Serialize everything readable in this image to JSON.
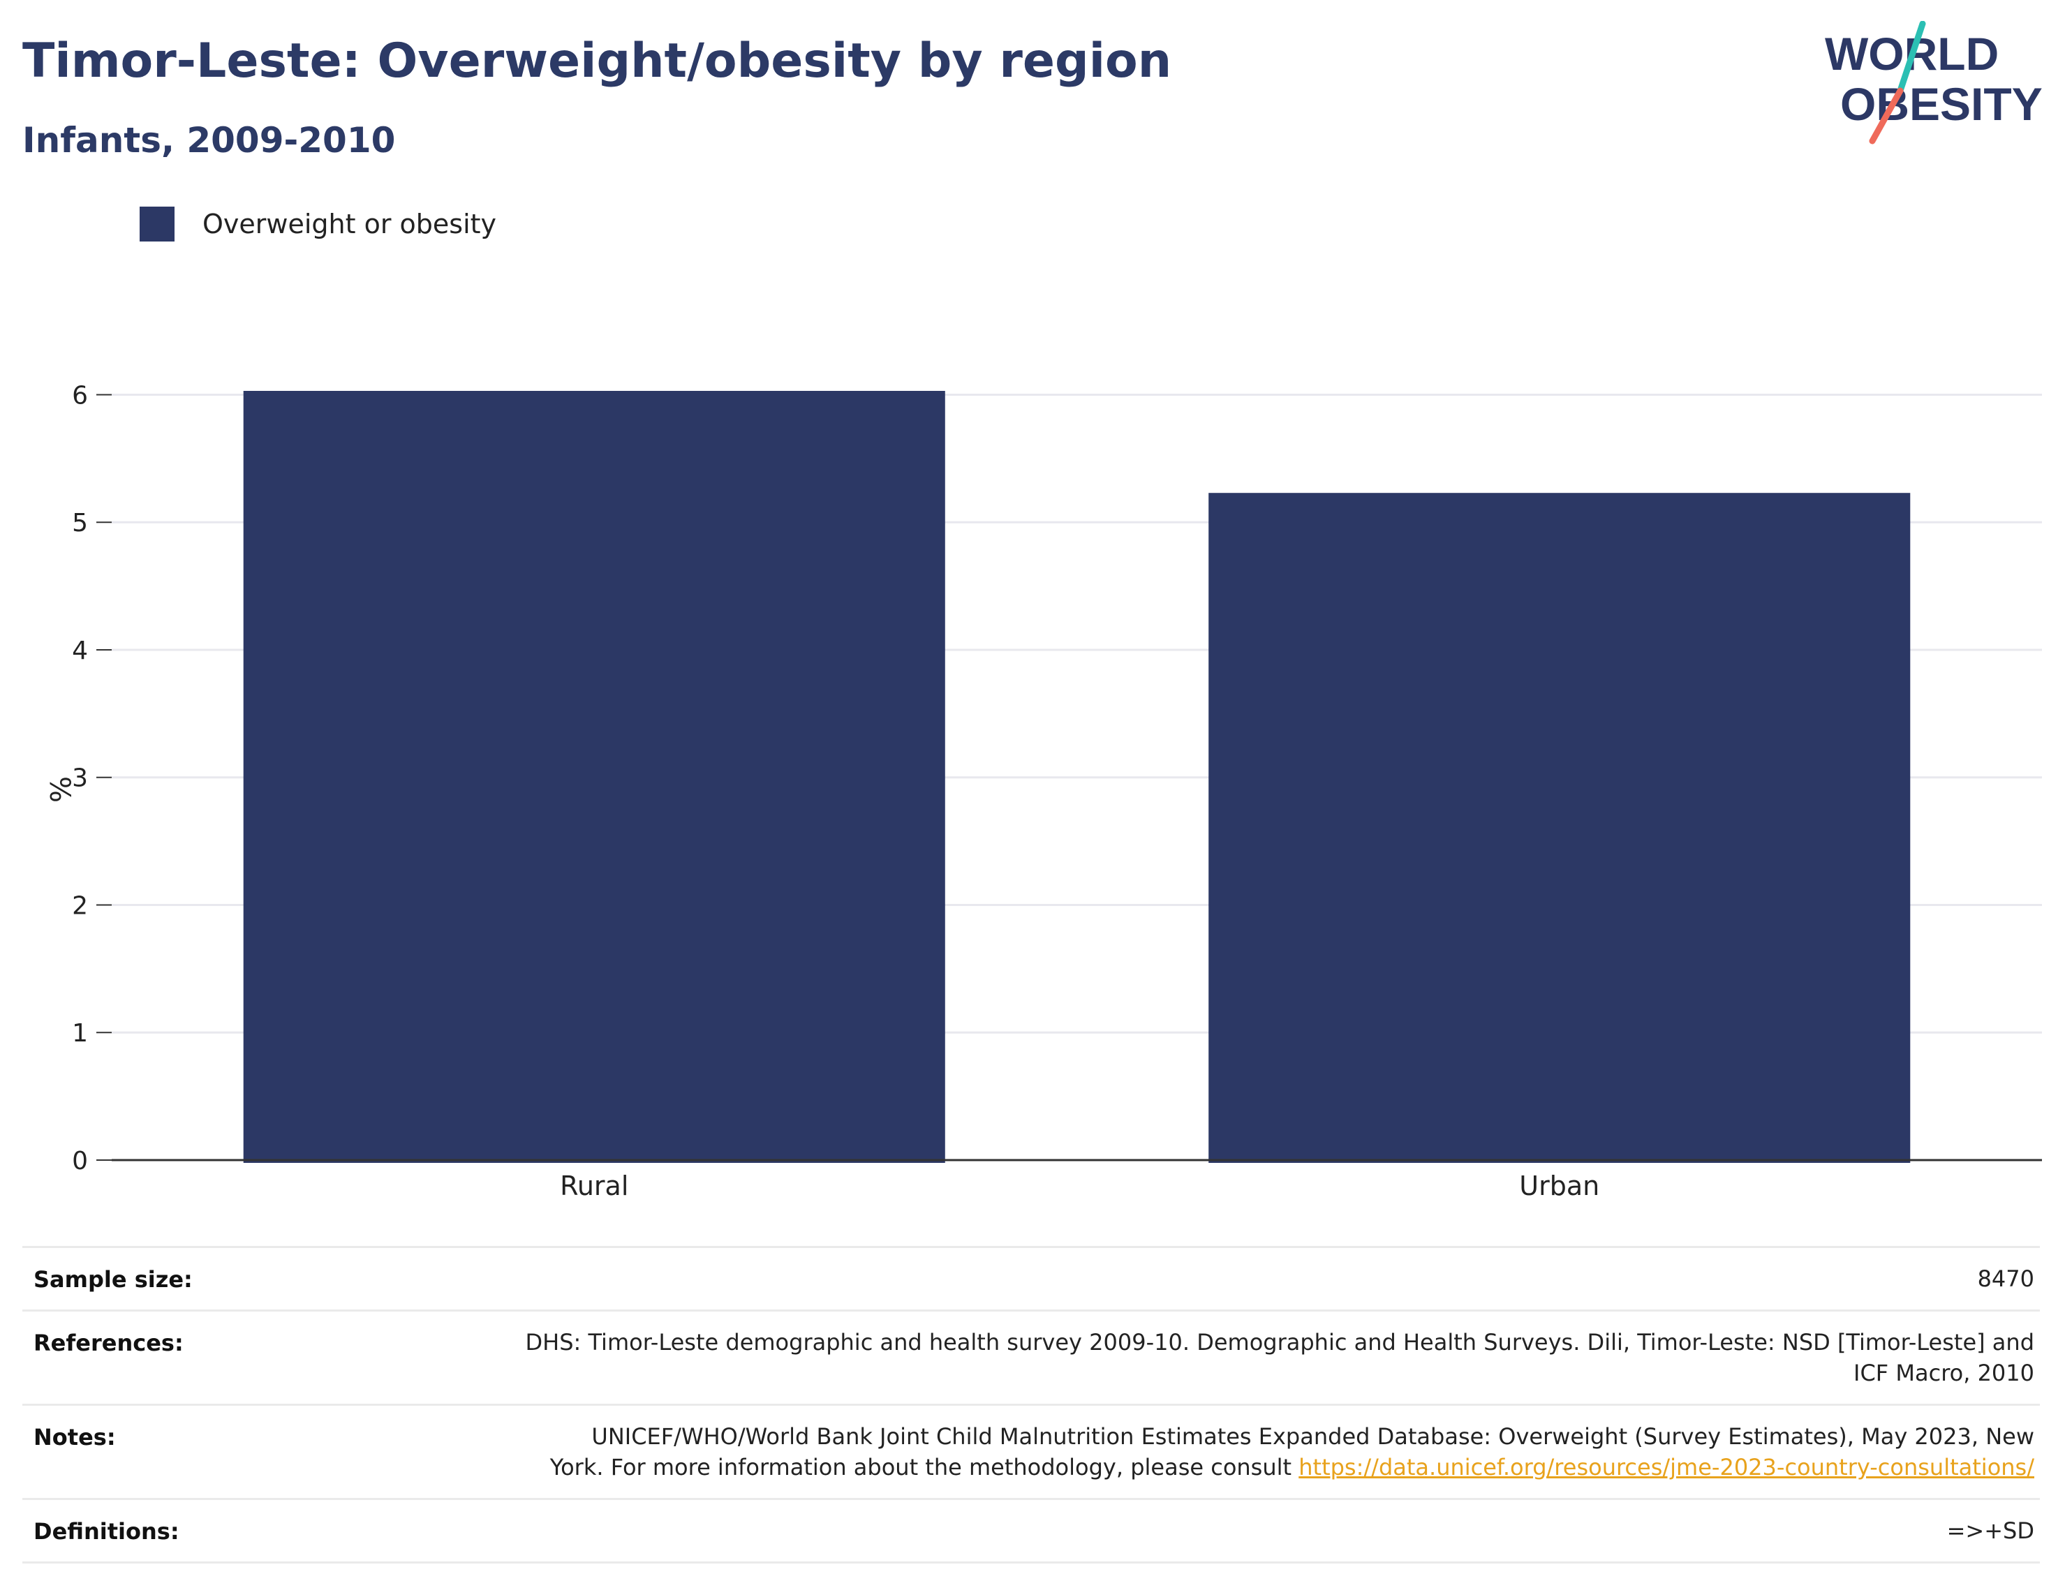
{
  "header": {
    "title": "Timor-Leste: Overweight/obesity by region",
    "subtitle": "Infants, 2009-2010"
  },
  "logo": {
    "line1": "WORLD",
    "line2": "OBESITY",
    "icon": "world-obesity-logo-icon"
  },
  "colors": {
    "bar": "#2c3865",
    "title": "#2c3a66",
    "link": "#e8a21c",
    "logo_teal": "#2bbfb3",
    "logo_coral": "#ef6a5a"
  },
  "chart_data": {
    "type": "bar",
    "categories": [
      "Rural",
      "Urban"
    ],
    "series": [
      {
        "name": "Overweight or obesity",
        "values": [
          6.03,
          5.23
        ]
      }
    ],
    "title": "",
    "xlabel": "",
    "ylabel": "%",
    "ylim": [
      0,
      6.03
    ],
    "yticks": [
      0,
      1,
      2,
      3,
      4,
      5,
      6
    ],
    "grid": true,
    "legend_position": "top-left"
  },
  "info": {
    "sample_size_label": "Sample size:",
    "sample_size_value": "8470",
    "references_label": "References:",
    "references_line1": "DHS: Timor-Leste demographic and health survey 2009-10. Demographic and Health Surveys. Dili, Timor-Leste: NSD [Timor-Leste] and",
    "references_line2": "ICF Macro, 2010",
    "notes_label": "Notes:",
    "notes_line1": "UNICEF/WHO/World Bank Joint Child Malnutrition Estimates Expanded Database: Overweight (Survey Estimates), May 2023, New",
    "notes_line2": "York. For more information about the methodology, please consult",
    "notes_link": "https://data.unicef.org/resources/jme-2023-country-consultations/",
    "definitions_label": "Definitions:",
    "definitions_value": "=>+SD"
  }
}
